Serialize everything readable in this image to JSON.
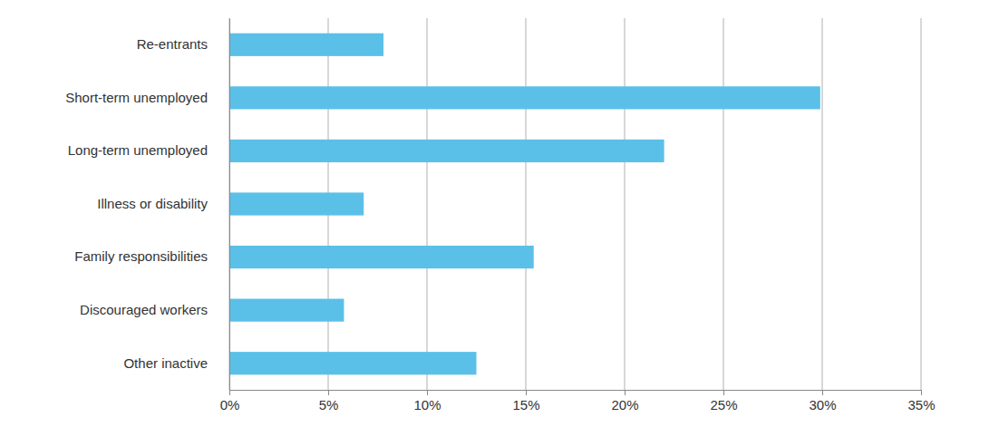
{
  "chart_data": {
    "type": "bar",
    "orientation": "horizontal",
    "categories": [
      "Re-entrants",
      "Short-term unemployed",
      "Long-term unemployed",
      "Illness or disability",
      "Family responsibilities",
      "Discouraged workers",
      "Other inactive"
    ],
    "values": [
      7.8,
      29.9,
      22.0,
      6.8,
      15.4,
      5.8,
      12.5
    ],
    "color": "#5bc0e8",
    "xlim": [
      0,
      35
    ],
    "xticks": [
      {
        "value": 0,
        "label": "0%"
      },
      {
        "value": 5,
        "label": "5%"
      },
      {
        "value": 10,
        "label": "10%"
      },
      {
        "value": 15,
        "label": "15%"
      },
      {
        "value": 20,
        "label": "20%"
      },
      {
        "value": 25,
        "label": "25%"
      },
      {
        "value": 30,
        "label": "30%"
      },
      {
        "value": 35,
        "label": "35%"
      }
    ],
    "grid": true
  }
}
